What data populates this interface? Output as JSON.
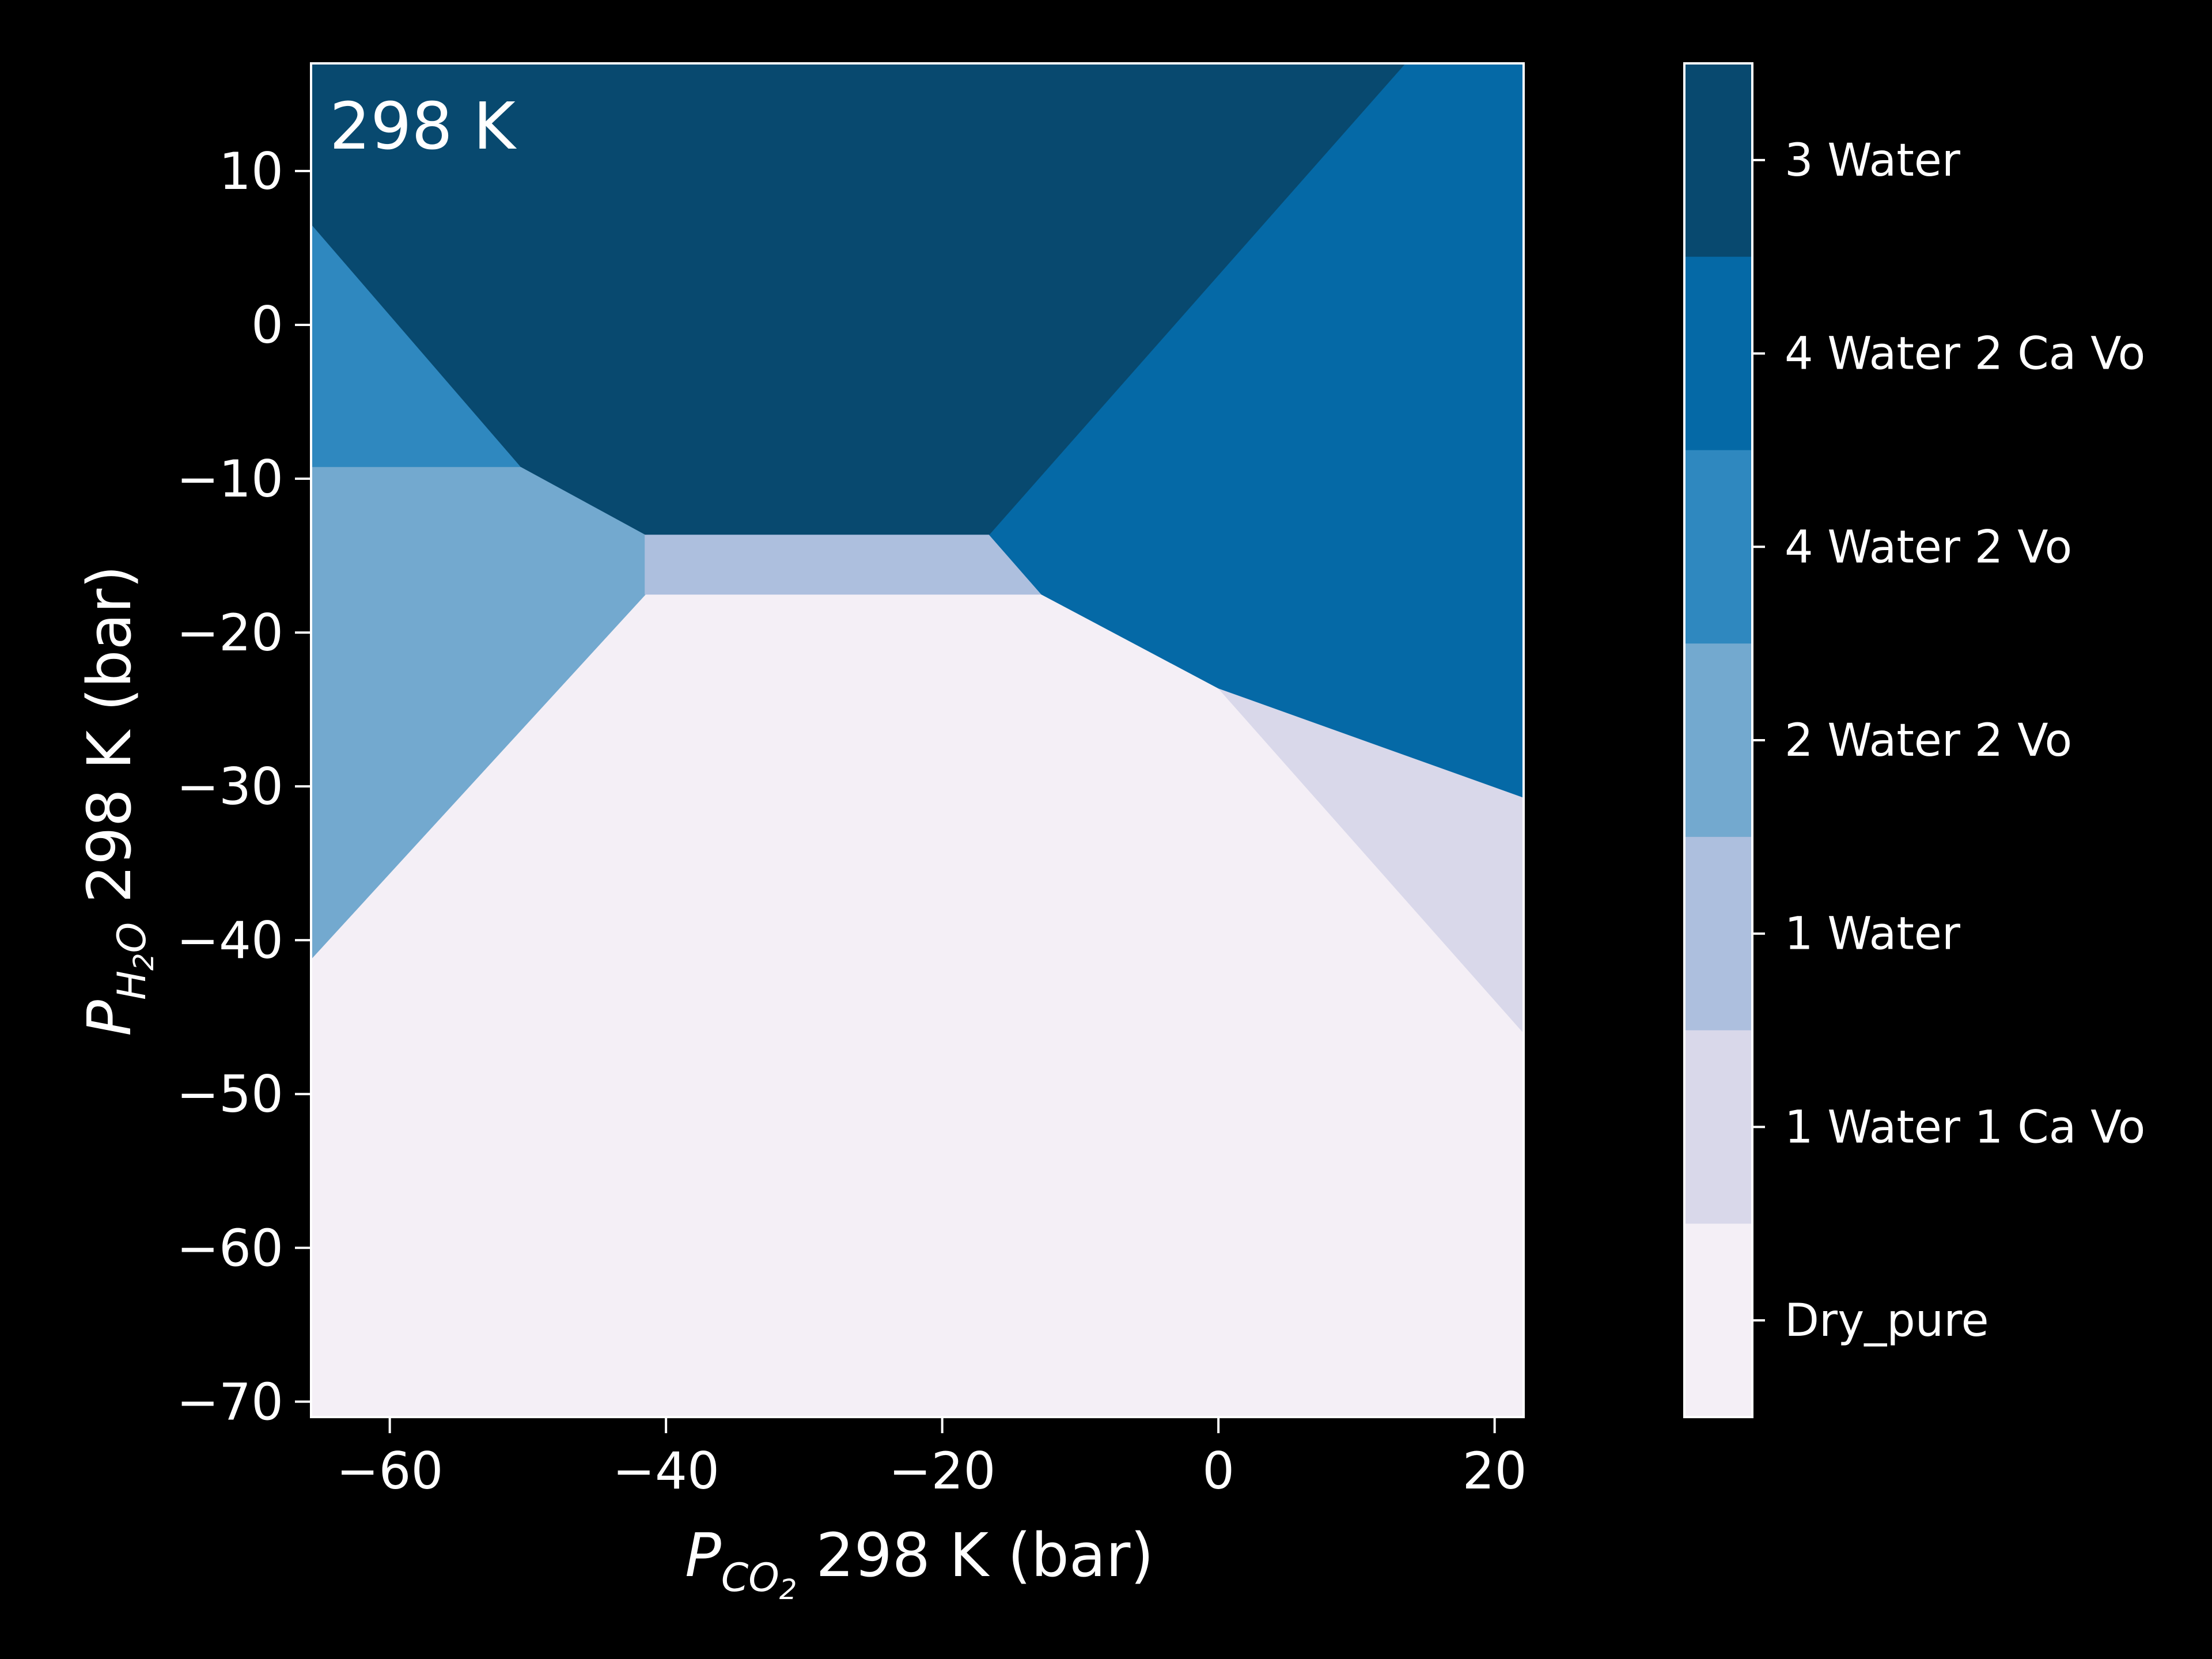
{
  "chart_data": {
    "type": "heatmap",
    "annotation": "298 K",
    "xlabel": {
      "symbol": "P",
      "subscript": "CO",
      "subscript_sub": "2",
      "text": " 298 K (bar)"
    },
    "ylabel": {
      "symbol": "P",
      "subscript": "H",
      "subscript_sub": "2",
      "subscript_tail": "O",
      "text": " 298 K (bar)"
    },
    "xlim": [
      -65.7,
      22.1
    ],
    "ylim": [
      -71.0,
      17.0
    ],
    "xticks": [
      -60,
      -40,
      -20,
      0,
      20
    ],
    "xtick_labels": [
      "−60",
      "−40",
      "−20",
      "0",
      "20"
    ],
    "yticks": [
      10,
      0,
      -10,
      -20,
      -30,
      -40,
      -50,
      -60,
      -70
    ],
    "ytick_labels": [
      "10",
      "0",
      "−10",
      "−20",
      "−30",
      "−40",
      "−50",
      "−60",
      "−70"
    ],
    "phases": [
      {
        "name": "3 Water",
        "color": "#08496f"
      },
      {
        "name": "4 Water 2 Ca Vo",
        "color": "#0569a6"
      },
      {
        "name": "4 Water 2 Vo",
        "color": "#2f88bf"
      },
      {
        "name": "2 Water 2 Vo",
        "color": "#73a9cf"
      },
      {
        "name": "1 Water",
        "color": "#adbfde"
      },
      {
        "name": "1 Water 1 Ca Vo",
        "color": "#d9d8ea"
      },
      {
        "name": "Dry_pure",
        "color": "#f4eff6"
      }
    ],
    "regions": [
      {
        "phase": "Dry_pure",
        "points": [
          [
            -65.7,
            -71.0
          ],
          [
            22.1,
            -71.0
          ],
          [
            22.1,
            17.0
          ],
          [
            -65.7,
            17.0
          ]
        ]
      },
      {
        "phase": "1 Water 1 Ca Vo",
        "points": [
          [
            0.0,
            -23.6
          ],
          [
            22.1,
            -30.7
          ],
          [
            22.1,
            -46.0
          ]
        ]
      },
      {
        "phase": "2 Water 2 Vo",
        "points": [
          [
            -65.7,
            -41.2
          ],
          [
            -65.7,
            -9.2
          ],
          [
            -50.5,
            -9.2
          ],
          [
            -41.5,
            -13.6
          ],
          [
            -41.5,
            -17.5
          ]
        ]
      },
      {
        "phase": "1 Water",
        "points": [
          [
            -41.5,
            -13.6
          ],
          [
            -16.6,
            -13.6
          ],
          [
            -12.8,
            -17.5
          ],
          [
            -41.5,
            -17.5
          ]
        ]
      },
      {
        "phase": "4 Water 2 Vo",
        "points": [
          [
            -65.7,
            6.6
          ],
          [
            -50.5,
            -9.2
          ],
          [
            -65.7,
            -9.2
          ]
        ]
      },
      {
        "phase": "4 Water 2 Ca Vo",
        "points": [
          [
            13.5,
            17.0
          ],
          [
            22.1,
            17.0
          ],
          [
            22.1,
            -30.7
          ],
          [
            0.0,
            -23.6
          ],
          [
            -12.8,
            -17.5
          ],
          [
            -16.6,
            -13.6
          ]
        ]
      },
      {
        "phase": "3 Water",
        "points": [
          [
            -65.7,
            17.0
          ],
          [
            13.5,
            17.0
          ],
          [
            -16.6,
            -13.6
          ],
          [
            -41.5,
            -13.6
          ],
          [
            -50.5,
            -9.2
          ],
          [
            -65.7,
            6.6
          ]
        ]
      }
    ],
    "colorbar": {
      "position": "right"
    }
  }
}
